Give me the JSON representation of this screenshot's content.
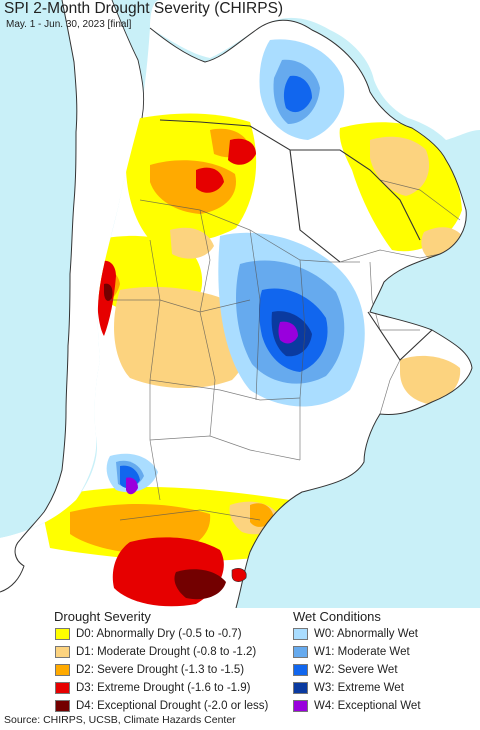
{
  "title": "SPI 2-Month Drought Severity (CHIRPS)",
  "subtitle": "May. 1 - Jun. 30, 2023 [final]",
  "legend": {
    "drought_heading": "Drought Severity",
    "wet_heading": "Wet Conditions",
    "drought": [
      {
        "label": "D0: Abnormally Dry (-0.5 to -0.7)",
        "color": "#ffff00"
      },
      {
        "label": "D1: Moderate Drought (-0.8 to -1.2)",
        "color": "#fcd37f"
      },
      {
        "label": "D2: Severe Drought (-1.3 to -1.5)",
        "color": "#ffaa00"
      },
      {
        "label": "D3: Extreme Drought (-1.6 to -1.9)",
        "color": "#e60000"
      },
      {
        "label": "D4: Exceptional Drought (-2.0 or less)",
        "color": "#730000"
      }
    ],
    "wet": [
      {
        "label": "W0: Abnormally Wet",
        "color": "#aaddff"
      },
      {
        "label": "W1: Moderate Wet",
        "color": "#66aaee"
      },
      {
        "label": "W2: Severe Wet",
        "color": "#1166ee"
      },
      {
        "label": "W3: Extreme Wet",
        "color": "#0a3aa0"
      },
      {
        "label": "W4: Exceptional Wet",
        "color": "#9900dd"
      }
    ]
  },
  "source": "Source: CHIRPS, UCSB, Climate Hazards Center"
}
